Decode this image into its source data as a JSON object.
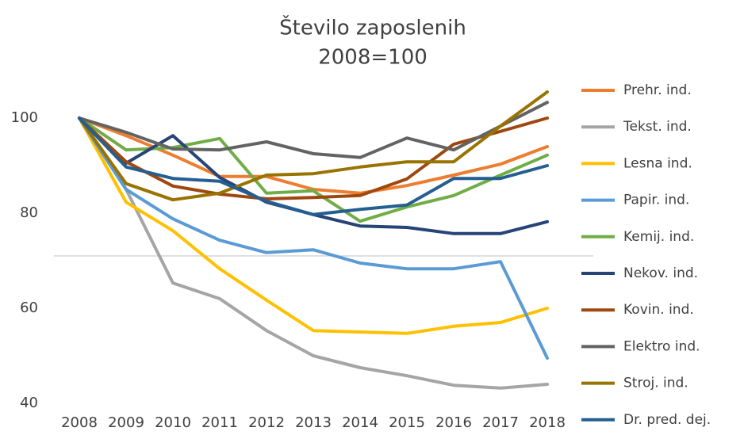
{
  "chart_data": {
    "type": "line",
    "title": "Število zaposlenih",
    "subtitle": "2008=100",
    "categories": [
      "2008",
      "2009",
      "2010",
      "2011",
      "2012",
      "2013",
      "2014",
      "2015",
      "2016",
      "2017",
      "2018"
    ],
    "ylim": [
      40,
      110
    ],
    "yticks": [
      40,
      60,
      80,
      100
    ],
    "legend": "right",
    "series": [
      {
        "name": "Prehr. ind.",
        "color": "#ED7D31",
        "values": [
          100,
          96.3,
          92.2,
          87.7,
          87.7,
          85,
          84.2,
          85.8,
          88,
          90.3,
          94
        ]
      },
      {
        "name": "Tekst. ind.",
        "color": "#A5A5A5",
        "values": [
          100,
          85,
          65.3,
          62,
          55.3,
          50,
          47.5,
          45.8,
          43.8,
          43.2,
          44
        ]
      },
      {
        "name": "Lesna ind.",
        "color": "#FFC000",
        "values": [
          100,
          82.3,
          76.3,
          68.3,
          61.7,
          55.3,
          55,
          54.7,
          56.2,
          57,
          60
        ]
      },
      {
        "name": "Papir. ind.",
        "color": "#5B9BD5",
        "values": [
          100,
          85,
          78.8,
          74.3,
          71.7,
          72.3,
          69.5,
          68.3,
          68.3,
          69.8,
          49.5
        ]
      },
      {
        "name": "Kemij. ind.",
        "color": "#70AD47",
        "values": [
          100,
          93.3,
          93.8,
          95.7,
          84.2,
          84.7,
          78.3,
          81.3,
          83.7,
          88,
          92.2
        ]
      },
      {
        "name": "Nekov. ind.",
        "color": "#264478",
        "values": [
          100,
          90.5,
          96.3,
          87.5,
          82.3,
          79.7,
          77.3,
          77,
          75.7,
          75.7,
          78.2
        ]
      },
      {
        "name": "Kovin. ind.",
        "color": "#9E480E",
        "values": [
          100,
          90.8,
          85.7,
          84,
          83,
          83.3,
          83.7,
          87.2,
          94.5,
          97.2,
          100
        ]
      },
      {
        "name": "Elektro ind.",
        "color": "#636363",
        "values": [
          100,
          97,
          93.5,
          93.3,
          95,
          92.5,
          91.7,
          95.8,
          93.3,
          98.3,
          103.3
        ]
      },
      {
        "name": "Stroj. ind.",
        "color": "#997300",
        "values": [
          100,
          86.2,
          82.8,
          84.2,
          88,
          88.3,
          89.7,
          90.8,
          90.8,
          98.3,
          105.5
        ]
      },
      {
        "name": "Dr. pred. dej.",
        "color": "#255E91",
        "values": [
          100,
          89.7,
          87.3,
          86.7,
          82.5,
          79.7,
          80.8,
          81.7,
          87.3,
          87.3,
          90
        ]
      }
    ]
  }
}
